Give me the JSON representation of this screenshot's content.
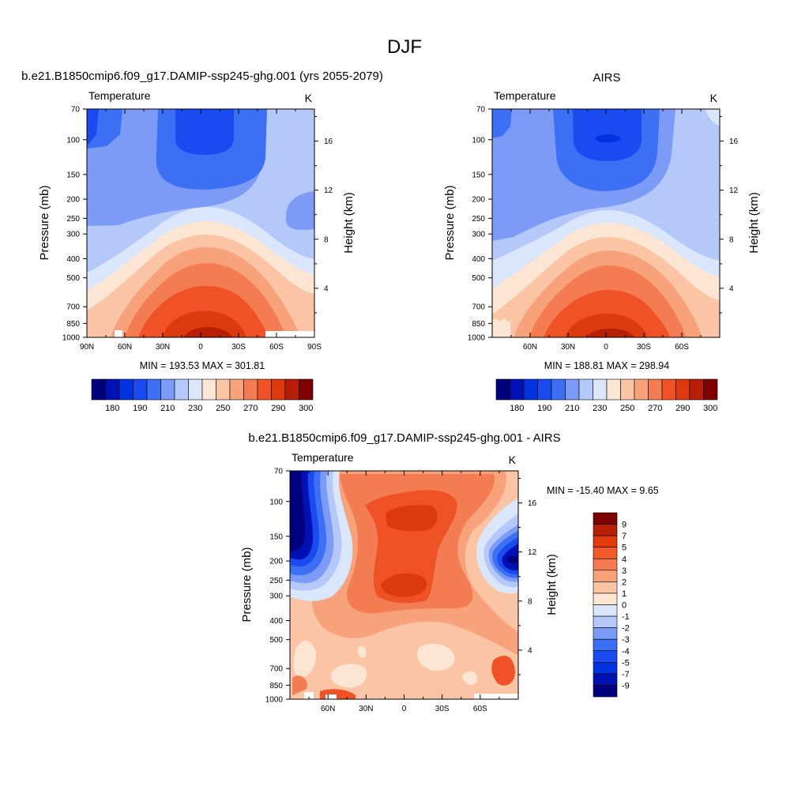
{
  "page": {
    "title": "DJF"
  },
  "panels": [
    {
      "id": "model",
      "top_title": "b.e21.B1850cmip6.f09_g17.DAMIP-ssp245-ghg.001 (yrs 2055-2079)",
      "left_label": "Temperature",
      "units": "K",
      "ylabel": "Pressure (mb)",
      "y2label": "Height (km)",
      "stats": "MIN = 193.53  MAX = 301.81"
    },
    {
      "id": "obs",
      "top_title": "AIRS",
      "left_label": "Temperature",
      "units": "K",
      "ylabel": "Pressure (mb)",
      "y2label": "Height (km)",
      "stats": "MIN = 188.81  MAX = 298.94"
    },
    {
      "id": "diff",
      "top_title": "b.e21.B1850cmip6.f09_g17.DAMIP-ssp245-ghg.001 - AIRS",
      "left_label": "Temperature",
      "units": "K",
      "ylabel": "Pressure (mb)",
      "y2label": "Height (km)",
      "stats": "MIN = -15.40  MAX =   9.65"
    }
  ],
  "axes": {
    "pressure_ticks": [
      "70",
      "100",
      "150",
      "200",
      "250",
      "300",
      "400",
      "500",
      "700",
      "850",
      "1000"
    ],
    "pressure_values": [
      70,
      100,
      150,
      200,
      250,
      300,
      400,
      500,
      700,
      850,
      1000
    ],
    "height_ticks": [
      "16",
      "12",
      "8",
      "4"
    ],
    "height_values_km": [
      16,
      12,
      8,
      4
    ],
    "lat_ticks_full": [
      "90N",
      "60N",
      "30N",
      "0",
      "30S",
      "60S",
      "90S"
    ],
    "lat_values_full": [
      90,
      60,
      30,
      0,
      -30,
      -60,
      -90
    ],
    "lat_ticks_partial": [
      "60N",
      "30N",
      "0",
      "30S",
      "60S"
    ],
    "lat_values_partial": [
      60,
      30,
      0,
      -30,
      -60
    ]
  },
  "chart_data": [
    {
      "type": "heatmap",
      "title": "b.e21.B1850cmip6.f09_g17.DAMIP-ssp245-ghg.001 (yrs 2055-2079)",
      "variable": "Temperature",
      "units": "K",
      "xlabel": "",
      "ylabel": "Pressure (mb)",
      "y2label": "Height (km)",
      "xlim": [
        90,
        -90
      ],
      "ylim": [
        1000,
        70
      ],
      "y_scale": "log",
      "min": 193.53,
      "max": 301.81,
      "colorbar_levels": [
        175,
        180,
        185,
        190,
        200,
        210,
        220,
        230,
        240,
        250,
        260,
        270,
        280,
        285,
        290,
        295,
        300
      ],
      "colorbar_labels": [
        "180",
        "190",
        "210",
        "230",
        "250",
        "270",
        "290",
        "300"
      ]
    },
    {
      "type": "heatmap",
      "title": "AIRS",
      "variable": "Temperature",
      "units": "K",
      "xlabel": "",
      "ylabel": "Pressure (mb)",
      "y2label": "Height (km)",
      "xlim": [
        90,
        -90
      ],
      "ylim": [
        1000,
        70
      ],
      "y_scale": "log",
      "min": 188.81,
      "max": 298.94,
      "colorbar_levels": [
        175,
        180,
        185,
        190,
        200,
        210,
        220,
        230,
        240,
        250,
        260,
        270,
        280,
        285,
        290,
        295,
        300
      ],
      "colorbar_labels": [
        "180",
        "190",
        "210",
        "230",
        "250",
        "270",
        "290",
        "300"
      ]
    },
    {
      "type": "heatmap",
      "title": "b.e21.B1850cmip6.f09_g17.DAMIP-ssp245-ghg.001 - AIRS",
      "variable": "Temperature",
      "units": "K",
      "xlabel": "",
      "ylabel": "Pressure (mb)",
      "y2label": "Height (km)",
      "xlim": [
        90,
        -90
      ],
      "ylim": [
        1000,
        70
      ],
      "y_scale": "log",
      "min": -15.4,
      "max": 9.65,
      "colorbar_levels": [
        -9,
        -7,
        -5,
        -4,
        -3,
        -2,
        -1,
        0,
        1,
        2,
        3,
        4,
        5,
        7,
        9
      ],
      "colorbar_labels": [
        "9",
        "7",
        "5",
        "4",
        "3",
        "2",
        "1",
        "0",
        "-1",
        "-2",
        "-3",
        "-4",
        "-5",
        "-7",
        "-9"
      ]
    }
  ],
  "colors": {
    "abs_palette": [
      "#00007f",
      "#0011b3",
      "#0033e0",
      "#1a4bf0",
      "#3d6ff5",
      "#7b9bf7",
      "#b4c8fa",
      "#dae6fb",
      "#fde5d4",
      "#fbc5a5",
      "#f8a27c",
      "#f47c52",
      "#ee5226",
      "#dc3a0e",
      "#b71e06",
      "#7e0000"
    ],
    "diff_palette": [
      "#7e0000",
      "#b71e06",
      "#e33c0c",
      "#f25a28",
      "#f57c52",
      "#f8a27c",
      "#fbc5a5",
      "#fde5d4",
      "#dae6fb",
      "#b4c8fa",
      "#7b9bf7",
      "#3d6ff5",
      "#1a4bf0",
      "#0033e0",
      "#0011b3",
      "#00007f"
    ]
  }
}
